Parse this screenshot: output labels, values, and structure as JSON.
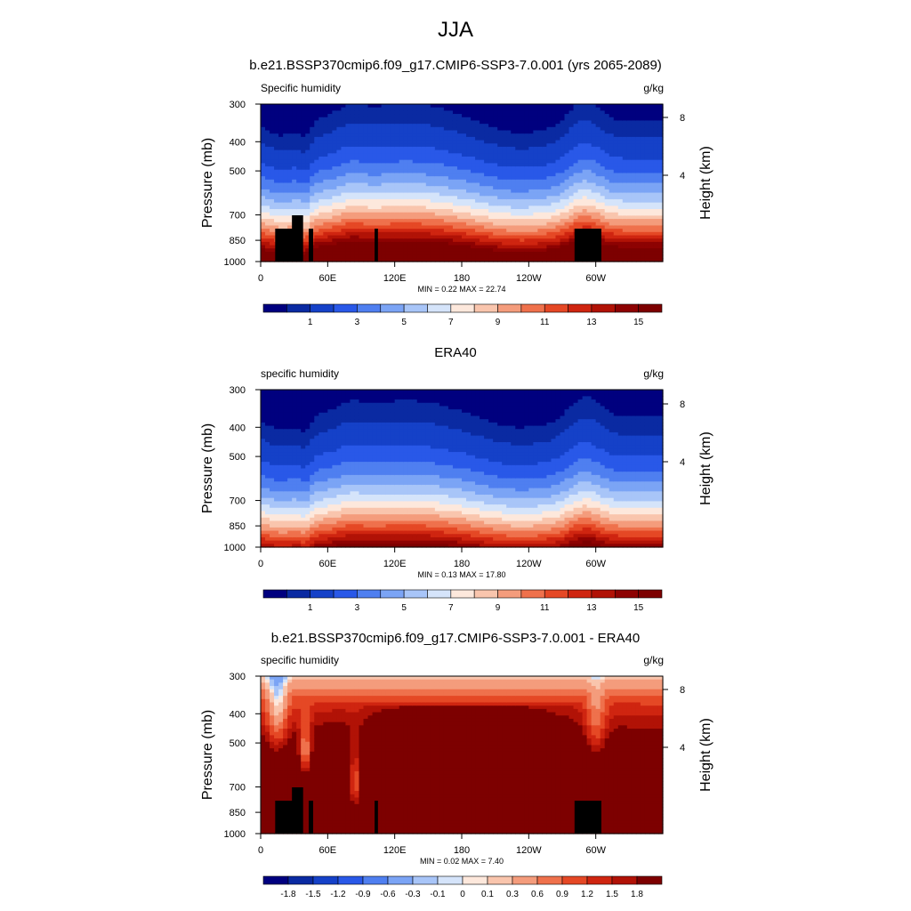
{
  "figure": {
    "title": "JJA"
  },
  "chart_data": [
    {
      "type": "heatmap",
      "title": "b.e21.BSSP370cmip6.f09_g17.CMIP6-SSP3-7.0.001 (yrs 2065-2089)",
      "left_label": "Specific humidity",
      "right_label": "g/kg",
      "ylabel": "Pressure (mb)",
      "y2label": "Height (km)",
      "yticks": [
        "300",
        "400",
        "500",
        "700",
        "850",
        "1000"
      ],
      "ytick_values": [
        300,
        400,
        500,
        700,
        850,
        1000
      ],
      "y2ticks": [
        "8",
        "4"
      ],
      "y2tick_values": [
        8,
        4
      ],
      "xticks": [
        "0",
        "60E",
        "120E",
        "180",
        "120W",
        "60W"
      ],
      "xtick_values": [
        0,
        60,
        120,
        180,
        240,
        300
      ],
      "xlim": [
        0,
        360
      ],
      "ylim": [
        1000,
        300
      ],
      "min_text": "MIN =   0.22  MAX =  22.74",
      "min": 0.22,
      "max": 22.74,
      "colorbar_levels": [
        0.5,
        1,
        2,
        3,
        4,
        5,
        6,
        7,
        8,
        9,
        10,
        11,
        12,
        13,
        14,
        15,
        16
      ],
      "colorbar_labels": [
        "1",
        "3",
        "5",
        "7",
        "9",
        "11",
        "13",
        "15"
      ],
      "colorbar_label_values": [
        1,
        3,
        5,
        7,
        9,
        11,
        13,
        15
      ],
      "colors": [
        "#00007f",
        "#0a2aa2",
        "#1541c8",
        "#2958e8",
        "#4f7ff0",
        "#7ba4f5",
        "#a8c5f8",
        "#d5e4fa",
        "#fde8dc",
        "#f9c5ad",
        "#f49c7c",
        "#ef714c",
        "#e54825",
        "#cf2510",
        "#b11206",
        "#8d0202",
        "#7d0000"
      ],
      "has_terrain": true
    },
    {
      "type": "heatmap",
      "title": "ERA40",
      "left_label": "specific humidity",
      "right_label": "g/kg",
      "ylabel": "Pressure (mb)",
      "y2label": "Height (km)",
      "yticks": [
        "300",
        "400",
        "500",
        "700",
        "850",
        "1000"
      ],
      "ytick_values": [
        300,
        400,
        500,
        700,
        850,
        1000
      ],
      "y2ticks": [
        "8",
        "4"
      ],
      "y2tick_values": [
        8,
        4
      ],
      "xticks": [
        "0",
        "60E",
        "120E",
        "180",
        "120W",
        "60W"
      ],
      "xtick_values": [
        0,
        60,
        120,
        180,
        240,
        300
      ],
      "xlim": [
        0,
        360
      ],
      "ylim": [
        1000,
        300
      ],
      "min_text": "MIN =   0.13  MAX =  17.80",
      "min": 0.13,
      "max": 17.8,
      "colorbar_levels": [
        0.5,
        1,
        2,
        3,
        4,
        5,
        6,
        7,
        8,
        9,
        10,
        11,
        12,
        13,
        14,
        15,
        16
      ],
      "colorbar_labels": [
        "1",
        "3",
        "5",
        "7",
        "9",
        "11",
        "13",
        "15"
      ],
      "colorbar_label_values": [
        1,
        3,
        5,
        7,
        9,
        11,
        13,
        15
      ],
      "colors": [
        "#00007f",
        "#0a2aa2",
        "#1541c8",
        "#2958e8",
        "#4f7ff0",
        "#7ba4f5",
        "#a8c5f8",
        "#d5e4fa",
        "#fde8dc",
        "#f9c5ad",
        "#f49c7c",
        "#ef714c",
        "#e54825",
        "#cf2510",
        "#b11206",
        "#8d0202",
        "#7d0000"
      ],
      "has_terrain": false
    },
    {
      "type": "heatmap",
      "title": "b.e21.BSSP370cmip6.f09_g17.CMIP6-SSP3-7.0.001 - ERA40",
      "left_label": "specific humidity",
      "right_label": "g/kg",
      "ylabel": "Pressure (mb)",
      "y2label": "Height (km)",
      "yticks": [
        "300",
        "400",
        "500",
        "700",
        "850",
        "1000"
      ],
      "ytick_values": [
        300,
        400,
        500,
        700,
        850,
        1000
      ],
      "y2ticks": [
        "8",
        "4"
      ],
      "y2tick_values": [
        8,
        4
      ],
      "xticks": [
        "0",
        "60E",
        "120E",
        "180",
        "120W",
        "60W"
      ],
      "xtick_values": [
        0,
        60,
        120,
        180,
        240,
        300
      ],
      "xlim": [
        0,
        360
      ],
      "ylim": [
        1000,
        300
      ],
      "min_text": "MIN =   0.02  MAX =   7.40",
      "min": 0.02,
      "max": 7.4,
      "colorbar_levels": [
        -1.8,
        -1.5,
        -1.2,
        -0.9,
        -0.6,
        -0.3,
        -0.1,
        0,
        0.1,
        0.3,
        0.6,
        0.9,
        1.2,
        1.5,
        1.8
      ],
      "colorbar_labels": [
        "-1.8",
        "-1.5",
        "-1.2",
        "-0.9",
        "-0.6",
        "-0.3",
        "-0.1",
        "0",
        "0.1",
        "0.3",
        "0.6",
        "0.9",
        "1.2",
        "1.5",
        "1.8"
      ],
      "colorbar_label_values": [
        -1.8,
        -1.5,
        -1.2,
        -0.9,
        -0.6,
        -0.3,
        -0.1,
        0,
        0.1,
        0.3,
        0.6,
        0.9,
        1.2,
        1.5,
        1.8
      ],
      "colors": [
        "#00007f",
        "#0a2aa2",
        "#1541c8",
        "#2958e8",
        "#4f7ff0",
        "#7ba4f5",
        "#a8c5f8",
        "#d5e4fa",
        "#fde8dc",
        "#f9c5ad",
        "#f49c7c",
        "#ef714c",
        "#e54825",
        "#cf2510",
        "#b11206",
        "#7d0000"
      ],
      "has_terrain": true
    }
  ]
}
